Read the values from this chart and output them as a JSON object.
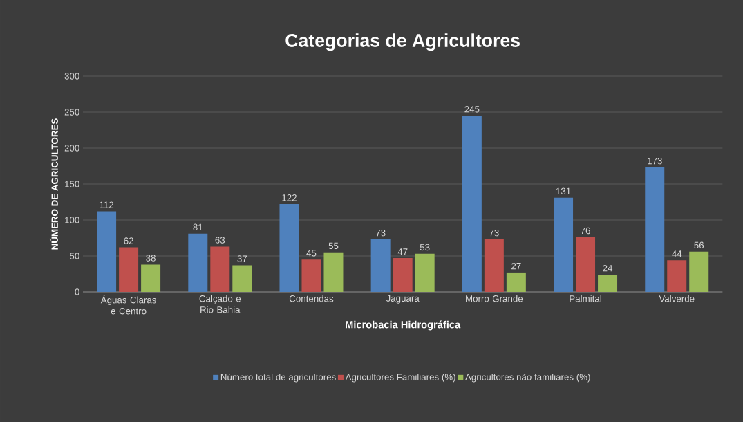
{
  "chart_data": {
    "type": "bar",
    "title": "Categorias de Agricultores",
    "xlabel": "Microbacia Hidrográfica",
    "ylabel": "NÚMERO DE AGRICULTORES",
    "categories": [
      "Águas Claras e Centro",
      "Calçado e Rio Bahia",
      "Contendas",
      "Jaguara",
      "Morro Grande",
      "Palmital",
      "Valverde"
    ],
    "series": [
      {
        "name": "Número total de agricultores",
        "color": "#4f81bd",
        "values": [
          112,
          81,
          122,
          73,
          245,
          131,
          173
        ]
      },
      {
        "name": "Agricultores Familiares (%)",
        "color": "#c0504d",
        "values": [
          62,
          63,
          45,
          47,
          73,
          76,
          44
        ]
      },
      {
        "name": "Agricultores não familiares (%)",
        "color": "#9bbb59",
        "values": [
          38,
          37,
          55,
          53,
          27,
          24,
          56
        ]
      }
    ],
    "ylim": [
      0,
      300
    ],
    "yticks": [
      0,
      50,
      100,
      150,
      200,
      250,
      300
    ],
    "grid": "y",
    "legend": "bottom",
    "data_labels": true
  }
}
